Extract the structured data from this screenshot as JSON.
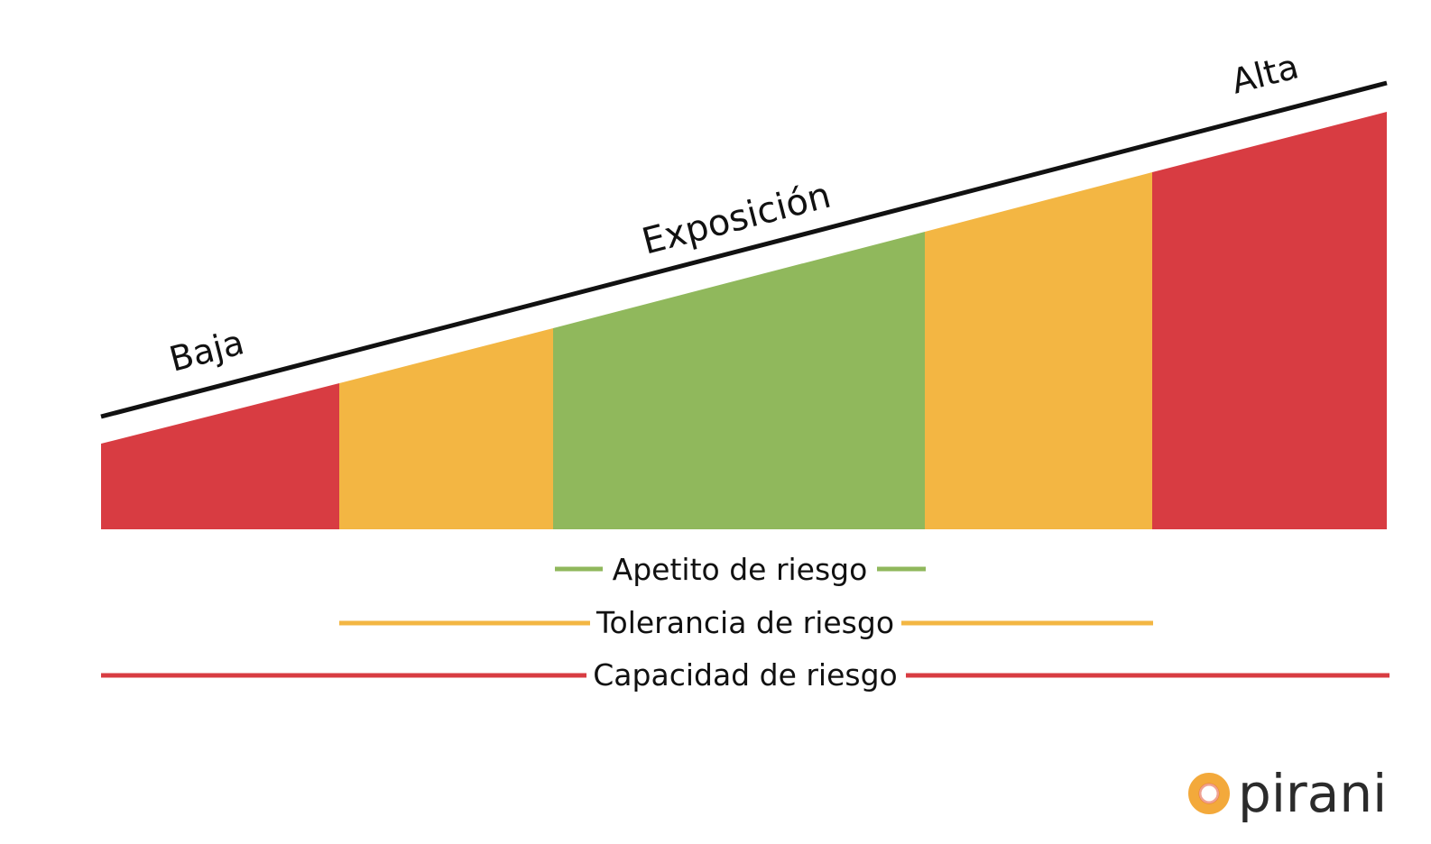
{
  "diagram": {
    "axis_labels": {
      "low": "Baja",
      "middle": "Exposición",
      "high": "Alta"
    },
    "segments": [
      {
        "zone": "capacidad",
        "color": "#d83c42"
      },
      {
        "zone": "tolerancia",
        "color": "#f3b643"
      },
      {
        "zone": "apetito",
        "color": "#90b85c"
      },
      {
        "zone": "tolerancia",
        "color": "#f3b643"
      },
      {
        "zone": "capacidad",
        "color": "#d83c42"
      }
    ],
    "legend": [
      {
        "label": "Apetito de riesgo",
        "color": "#90b85c"
      },
      {
        "label": "Tolerancia de riesgo",
        "color": "#f3b643"
      },
      {
        "label": "Capacidad de riesgo",
        "color": "#d83c42"
      }
    ],
    "line_color": "#111111"
  },
  "brand": {
    "name": "pirani",
    "ring_color": "#f3a93b",
    "ring_inner_color": "#e2553a"
  }
}
